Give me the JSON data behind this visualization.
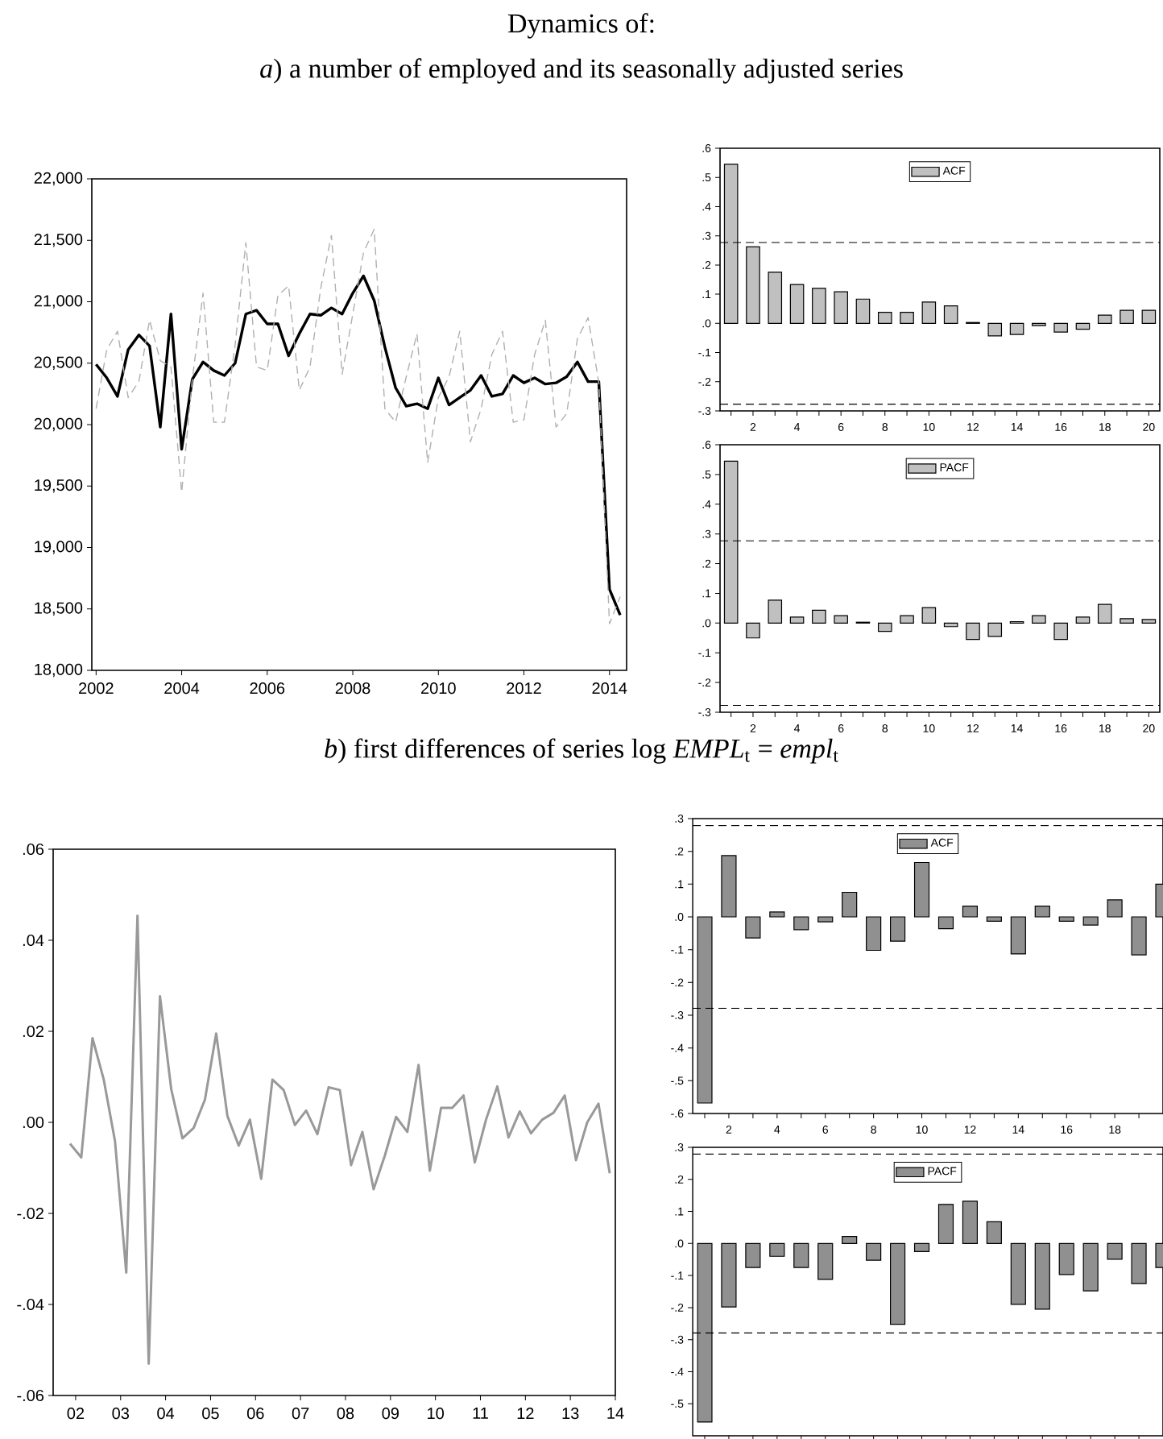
{
  "chart_data": [
    {
      "type": "line",
      "title": "Dynamics of:",
      "subtitle": "*a*) a number of employed and its seasonally adjusted series",
      "x": [
        2002,
        2002.25,
        2002.5,
        2002.75,
        2003,
        2003.25,
        2003.5,
        2003.75,
        2004,
        2004.25,
        2004.5,
        2004.75,
        2005,
        2005.25,
        2005.5,
        2005.75,
        2006,
        2006.25,
        2006.5,
        2006.75,
        2007,
        2007.25,
        2007.5,
        2007.75,
        2008,
        2008.25,
        2008.5,
        2008.75,
        2009,
        2009.25,
        2009.5,
        2009.75,
        2010,
        2010.25,
        2010.5,
        2010.75,
        2011,
        2011.25,
        2011.5,
        2011.75,
        2012,
        2012.25,
        2012.5,
        2012.75,
        2013,
        2013.25,
        2013.5,
        2013.75,
        2014,
        2014.25
      ],
      "series": [
        {
          "color": "#000000",
          "line_style": "solid",
          "values": [
            20490,
            20380,
            20230,
            20610,
            20730,
            20640,
            19980,
            20900,
            19800,
            20370,
            20510,
            20440,
            20400,
            20500,
            20900,
            20930,
            20820,
            20820,
            20560,
            20740,
            20900,
            20890,
            20950,
            20900,
            21070,
            21210,
            21010,
            20630,
            20300,
            20150,
            20170,
            20130,
            20380,
            20160,
            20220,
            20280,
            20400,
            20230,
            20250,
            20400,
            20340,
            20380,
            20330,
            20340,
            20390,
            20510,
            20350,
            20350,
            18660,
            18450
          ]
        },
        {
          "color": "#b0b0b0",
          "line_style": "dashed",
          "values": [
            20130,
            20610,
            20760,
            20220,
            20350,
            20850,
            20520,
            20470,
            19450,
            20370,
            21070,
            20020,
            20020,
            20650,
            21480,
            20470,
            20440,
            21050,
            21130,
            20280,
            20470,
            21110,
            21540,
            20410,
            20900,
            21400,
            21590,
            20130,
            20020,
            20390,
            20740,
            19690,
            20220,
            20390,
            20760,
            19860,
            20130,
            20570,
            20760,
            20020,
            20040,
            20570,
            20850,
            19980,
            20090,
            20700,
            20870,
            20340,
            18380,
            18600
          ]
        }
      ],
      "xlim": [
        2001.9,
        2014.4
      ],
      "ylim": [
        18000,
        22000
      ],
      "xticks": [
        2002,
        2004,
        2006,
        2008,
        2010,
        2012,
        2014
      ],
      "yticks": [
        {
          "value": 18000,
          "label": "18,000"
        },
        {
          "value": 18500,
          "label": "18,500"
        },
        {
          "value": 19000,
          "label": "19,000"
        },
        {
          "value": 19500,
          "label": "19,500"
        },
        {
          "value": 20000,
          "label": "20,000"
        },
        {
          "value": 20500,
          "label": "20,500"
        },
        {
          "value": 21000,
          "label": "21,000"
        },
        {
          "value": 21500,
          "label": "21,500"
        },
        {
          "value": 22000,
          "label": "22,000"
        }
      ]
    },
    {
      "type": "bar",
      "x": [
        1,
        2,
        3,
        4,
        5,
        6,
        7,
        8,
        9,
        10,
        11,
        12,
        13,
        14,
        15,
        16,
        17,
        18,
        19,
        20
      ],
      "series": [
        {
          "name": "ACF",
          "color": "#c0c0c0",
          "values": [
            0.545,
            0.262,
            0.175,
            0.133,
            0.12,
            0.108,
            0.083,
            0.038,
            0.038,
            0.073,
            0.06,
            0.003,
            -0.043,
            -0.038,
            -0.008,
            -0.03,
            -0.02,
            0.028,
            0.045,
            0.045
          ]
        }
      ],
      "legend": "top",
      "xlim": [
        0.5,
        20.5
      ],
      "ylim": [
        -0.3,
        0.6
      ],
      "xticks": [
        {
          "value": 1,
          "label": null
        },
        2,
        {
          "value": 3,
          "label": null
        },
        4,
        {
          "value": 5,
          "label": null
        },
        6,
        {
          "value": 7,
          "label": null
        },
        8,
        {
          "value": 9,
          "label": null
        },
        10,
        {
          "value": 11,
          "label": null
        },
        12,
        {
          "value": 13,
          "label": null
        },
        14,
        {
          "value": 15,
          "label": null
        },
        16,
        {
          "value": 17,
          "label": null
        },
        18,
        {
          "value": 19,
          "label": null
        },
        20
      ],
      "yticks": [
        {
          "value": -0.3,
          "label": "-.3"
        },
        {
          "value": -0.2,
          "label": "-.2"
        },
        {
          "value": -0.1,
          "label": "-.1"
        },
        {
          "value": 0,
          "label": ".0"
        },
        {
          "value": 0.1,
          "label": ".1"
        },
        {
          "value": 0.2,
          "label": ".2"
        },
        {
          "value": 0.3,
          "label": ".3"
        },
        {
          "value": 0.4,
          "label": ".4"
        },
        {
          "value": 0.5,
          "label": ".5"
        },
        {
          "value": 0.6,
          "label": ".6"
        }
      ],
      "ref_lines": [
        {
          "axis": "y",
          "value": 0.277,
          "line_style": "dashed"
        },
        {
          "axis": "y",
          "value": -0.277,
          "line_style": "dashed"
        }
      ]
    },
    {
      "type": "bar",
      "x": [
        1,
        2,
        3,
        4,
        5,
        6,
        7,
        8,
        9,
        10,
        11,
        12,
        13,
        14,
        15,
        16,
        17,
        18,
        19,
        20
      ],
      "series": [
        {
          "name": "PACF",
          "color": "#c0c0c0",
          "values": [
            0.545,
            -0.05,
            0.077,
            0.02,
            0.043,
            0.025,
            0.003,
            -0.028,
            0.025,
            0.052,
            -0.012,
            -0.055,
            -0.045,
            0.005,
            0.025,
            -0.055,
            0.02,
            0.063,
            0.015,
            0.012
          ]
        }
      ],
      "legend": "top",
      "xlim": [
        0.5,
        20.5
      ],
      "ylim": [
        -0.3,
        0.6
      ],
      "xticks": [
        {
          "value": 1,
          "label": null
        },
        2,
        {
          "value": 3,
          "label": null
        },
        4,
        {
          "value": 5,
          "label": null
        },
        6,
        {
          "value": 7,
          "label": null
        },
        8,
        {
          "value": 9,
          "label": null
        },
        10,
        {
          "value": 11,
          "label": null
        },
        12,
        {
          "value": 13,
          "label": null
        },
        14,
        {
          "value": 15,
          "label": null
        },
        16,
        {
          "value": 17,
          "label": null
        },
        18,
        {
          "value": 19,
          "label": null
        },
        20
      ],
      "yticks": [
        {
          "value": -0.3,
          "label": "-.3"
        },
        {
          "value": -0.2,
          "label": "-.2"
        },
        {
          "value": -0.1,
          "label": "-.1"
        },
        {
          "value": 0,
          "label": ".0"
        },
        {
          "value": 0.1,
          "label": ".1"
        },
        {
          "value": 0.2,
          "label": ".2"
        },
        {
          "value": 0.3,
          "label": ".3"
        },
        {
          "value": 0.4,
          "label": ".4"
        },
        {
          "value": 0.5,
          "label": ".5"
        },
        {
          "value": 0.6,
          "label": ".6"
        }
      ],
      "ref_lines": [
        {
          "axis": "y",
          "value": 0.277,
          "line_style": "dashed"
        },
        {
          "axis": "y",
          "value": -0.277,
          "line_style": "dashed"
        }
      ]
    },
    {
      "type": "line",
      "subtitle": "*b*) first differences of series log *EMPL*$_{t}$ = *empl*$_{t}$",
      "x": [
        1.875,
        2.125,
        2.375,
        2.625,
        2.875,
        3.125,
        3.375,
        3.625,
        3.875,
        4.125,
        4.375,
        4.625,
        4.875,
        5.125,
        5.375,
        5.625,
        5.875,
        6.125,
        6.375,
        6.625,
        6.875,
        7.125,
        7.375,
        7.625,
        7.875,
        8.125,
        8.375,
        8.625,
        8.875,
        9.125,
        9.375,
        9.625,
        9.875,
        10.125,
        10.375,
        10.625,
        10.875,
        11.125,
        11.375,
        11.625,
        11.875,
        12.125,
        12.375,
        12.625,
        12.875,
        13.125,
        13.375,
        13.625,
        13.875
      ],
      "series": [
        {
          "color": "#999999",
          "line_style": "solid",
          "values": [
            -0.0047,
            -0.0077,
            0.0185,
            0.0094,
            -0.0041,
            -0.033,
            0.0454,
            -0.053,
            0.0277,
            0.0073,
            -0.0035,
            -0.0012,
            0.005,
            0.0195,
            0.0014,
            -0.0051,
            0.0006,
            -0.0124,
            0.0094,
            0.0071,
            -0.0006,
            0.0026,
            -0.0026,
            0.0077,
            0.0071,
            -0.0094,
            -0.0021,
            -0.0147,
            -0.0073,
            0.0012,
            -0.0021,
            0.0126,
            -0.0106,
            0.0032,
            0.0032,
            0.0059,
            -0.0088,
            0.0006,
            0.0079,
            -0.0033,
            0.0024,
            -0.0024,
            0.0006,
            0.0021,
            0.0059,
            -0.0083,
            0.0,
            0.0041,
            -0.0112
          ]
        }
      ],
      "xlim": [
        1.5,
        14.0
      ],
      "ylim": [
        -0.06,
        0.06
      ],
      "xticks": [
        {
          "value": 2,
          "label": "02"
        },
        {
          "value": 3,
          "label": "03"
        },
        {
          "value": 4,
          "label": "04"
        },
        {
          "value": 5,
          "label": "05"
        },
        {
          "value": 6,
          "label": "06"
        },
        {
          "value": 7,
          "label": "07"
        },
        {
          "value": 8,
          "label": "08"
        },
        {
          "value": 9,
          "label": "09"
        },
        10,
        11,
        12,
        13,
        14
      ],
      "yticks": [
        {
          "value": -0.06,
          "label": "-.06"
        },
        {
          "value": -0.04,
          "label": "-.04"
        },
        {
          "value": -0.02,
          "label": "-.02"
        },
        {
          "value": 0,
          "label": ".00"
        },
        {
          "value": 0.02,
          "label": ".02"
        },
        {
          "value": 0.04,
          "label": ".04"
        },
        {
          "value": 0.06,
          "label": ".06"
        }
      ]
    },
    {
      "type": "bar",
      "x": [
        1,
        2,
        3,
        4,
        5,
        6,
        7,
        8,
        9,
        10,
        11,
        12,
        13,
        14,
        15,
        16,
        17,
        18,
        19,
        20
      ],
      "series": [
        {
          "name": "ACF",
          "color": "#909090",
          "values": [
            -0.568,
            0.187,
            -0.064,
            0.015,
            -0.039,
            -0.015,
            0.075,
            -0.102,
            -0.074,
            0.166,
            -0.036,
            0.033,
            -0.013,
            -0.113,
            0.033,
            -0.013,
            -0.025,
            0.052,
            -0.116,
            0.1
          ]
        }
      ],
      "legend": "top",
      "xlim": [
        0.5,
        20.0
      ],
      "ylim": [
        -0.6,
        0.3
      ],
      "xticks": [
        {
          "value": 1,
          "label": null
        },
        2,
        {
          "value": 3,
          "label": null
        },
        4,
        {
          "value": 5,
          "label": null
        },
        6,
        {
          "value": 7,
          "label": null
        },
        8,
        {
          "value": 9,
          "label": null
        },
        10,
        {
          "value": 11,
          "label": null
        },
        12,
        {
          "value": 13,
          "label": null
        },
        14,
        {
          "value": 15,
          "label": null
        },
        16,
        {
          "value": 17,
          "label": null
        },
        18,
        {
          "value": 19,
          "label": null
        }
      ],
      "yticks": [
        {
          "value": -0.6,
          "label": "-.6"
        },
        {
          "value": -0.5,
          "label": "-.5"
        },
        {
          "value": -0.4,
          "label": "-.4"
        },
        {
          "value": -0.3,
          "label": "-.3"
        },
        {
          "value": -0.2,
          "label": "-.2"
        },
        {
          "value": -0.1,
          "label": "-.1"
        },
        {
          "value": 0,
          "label": ".0"
        },
        {
          "value": 0.1,
          "label": ".1"
        },
        {
          "value": 0.2,
          "label": ".2"
        },
        {
          "value": 0.3,
          "label": ".3"
        }
      ],
      "ref_lines": [
        {
          "axis": "y",
          "value": 0.279,
          "line_style": "dashed"
        },
        {
          "axis": "y",
          "value": -0.279,
          "line_style": "dashed"
        }
      ]
    },
    {
      "type": "bar",
      "x": [
        1,
        2,
        3,
        4,
        5,
        6,
        7,
        8,
        9,
        10,
        11,
        12,
        13,
        14,
        15,
        16,
        17,
        18,
        19,
        20
      ],
      "series": [
        {
          "name": "PACF",
          "color": "#909090",
          "values": [
            -0.557,
            -0.198,
            -0.075,
            -0.04,
            -0.075,
            -0.112,
            0.022,
            -0.052,
            -0.252,
            -0.025,
            0.122,
            0.132,
            0.068,
            -0.19,
            -0.205,
            -0.097,
            -0.148,
            -0.049,
            -0.125,
            -0.075
          ]
        }
      ],
      "legend": "top",
      "tick_labels": "y",
      "xlim": [
        0.5,
        20.0
      ],
      "ylim": [
        -0.6,
        0.3
      ],
      "xticks": [
        {
          "value": 1,
          "label": null
        },
        {
          "value": 2,
          "label": null
        },
        {
          "value": 3,
          "label": null
        },
        {
          "value": 4,
          "label": null
        },
        {
          "value": 5,
          "label": null
        },
        {
          "value": 6,
          "label": null
        },
        {
          "value": 7,
          "label": null
        },
        {
          "value": 8,
          "label": null
        },
        {
          "value": 9,
          "label": null
        },
        {
          "value": 10,
          "label": null
        },
        {
          "value": 11,
          "label": null
        },
        {
          "value": 12,
          "label": null
        },
        {
          "value": 13,
          "label": null
        },
        {
          "value": 14,
          "label": null
        },
        {
          "value": 15,
          "label": null
        },
        {
          "value": 16,
          "label": null
        },
        {
          "value": 17,
          "label": null
        },
        {
          "value": 18,
          "label": null
        },
        {
          "value": 19,
          "label": null
        }
      ],
      "yticks": [
        {
          "value": -0.5,
          "label": "-.5"
        },
        {
          "value": -0.4,
          "label": "-.4"
        },
        {
          "value": -0.3,
          "label": "-.3"
        },
        {
          "value": -0.2,
          "label": "-.2"
        },
        {
          "value": -0.1,
          "label": "-.1"
        },
        {
          "value": 0,
          "label": ".0"
        },
        {
          "value": 0.1,
          "label": ".1"
        },
        {
          "value": 0.2,
          "label": ".2"
        },
        {
          "value": 0.3,
          "label": ".3"
        }
      ],
      "ref_lines": [
        {
          "axis": "y",
          "value": 0.279,
          "line_style": "dashed"
        },
        {
          "axis": "y",
          "value": -0.279,
          "line_style": "dashed"
        }
      ]
    }
  ]
}
